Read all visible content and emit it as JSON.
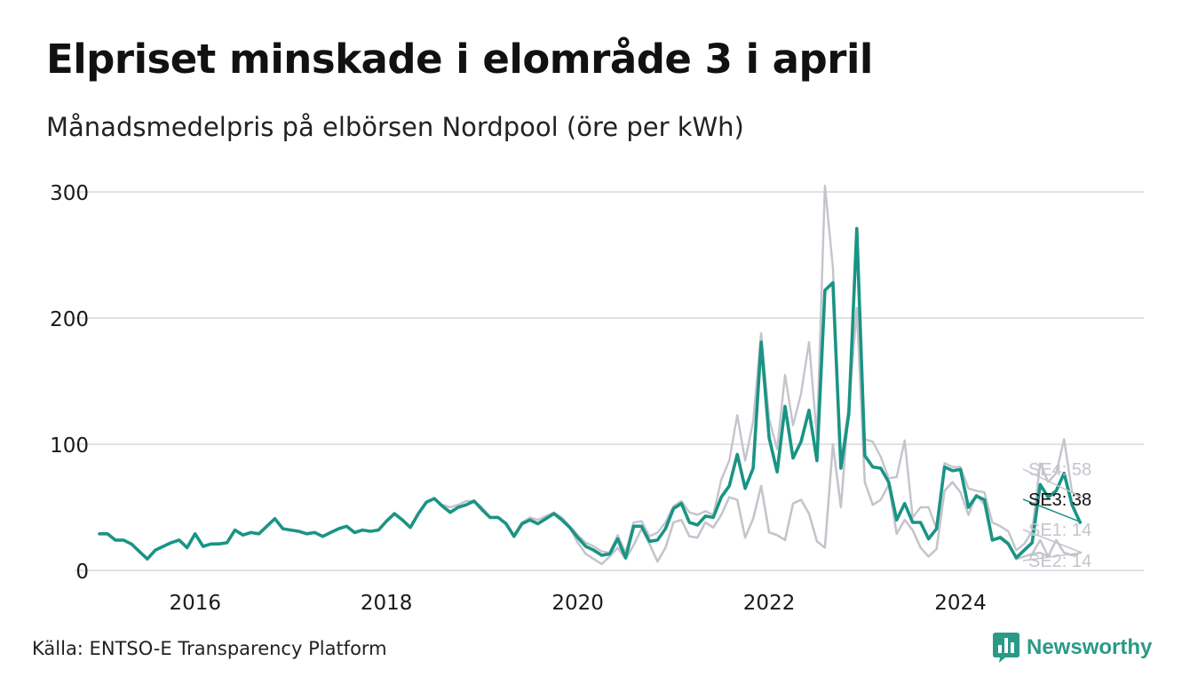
{
  "title": "Elpriset minskade i elområde 3 i april",
  "subtitle": "Månadsmedelpris på elbörsen Nordpool (öre per kWh)",
  "source": "Källa: ENTSO-E Transparency Platform",
  "brand": {
    "name": "Newsworthy",
    "color": "#2a9a86",
    "icon": "bar-chart-speech-bubble-icon"
  },
  "colors": {
    "highlight": "#1a9484",
    "other": "#c4c4cc",
    "grid": "#e2e2e6",
    "label_other": "#c4c4cc",
    "label_highlight": "#111111"
  },
  "chart_data": {
    "type": "line",
    "title": "Elpriset minskade i elområde 3 i april",
    "subtitle": "Månadsmedelpris på elbörsen Nordpool (öre per kWh)",
    "xlabel": "",
    "ylabel": "",
    "xlim": [
      "2015-01",
      "2025-12"
    ],
    "ylim": [
      0,
      300
    ],
    "y_ticks": [
      0,
      100,
      200,
      300
    ],
    "x_ticks": [
      "2016",
      "2018",
      "2020",
      "2022",
      "2024"
    ],
    "grid": true,
    "x_start": "2015-01",
    "x_step": "month",
    "highlight_series": "SE3",
    "series": [
      {
        "name": "SE3",
        "end_label": "SE3: 38",
        "values": [
          29,
          29,
          24,
          24,
          21,
          15,
          9,
          16,
          19,
          22,
          24,
          18,
          29,
          19,
          21,
          21,
          22,
          32,
          28,
          30,
          29,
          35,
          41,
          33,
          32,
          31,
          29,
          30,
          27,
          30,
          33,
          35,
          30,
          32,
          31,
          32,
          39,
          45,
          40,
          34,
          45,
          54,
          57,
          51,
          46,
          50,
          52,
          55,
          48,
          42,
          42,
          37,
          27,
          37,
          40,
          37,
          41,
          45,
          40,
          34,
          26,
          19,
          16,
          12,
          13,
          25,
          10,
          35,
          35,
          23,
          24,
          33,
          49,
          53,
          38,
          36,
          43,
          42,
          58,
          67,
          92,
          65,
          81,
          181,
          105,
          78,
          130,
          89,
          102,
          127,
          87,
          222,
          228,
          81,
          124,
          271,
          91,
          82,
          81,
          70,
          40,
          53,
          38,
          38,
          25,
          33,
          82,
          79,
          80,
          50,
          59,
          56,
          24,
          26,
          21,
          10,
          16,
          22,
          68,
          58,
          63,
          77,
          52,
          38
        ]
      },
      {
        "name": "SE4",
        "end_label": "SE4: 58",
        "values": [
          29,
          29,
          24,
          24,
          21,
          15,
          9,
          16,
          19,
          22,
          24,
          18,
          29,
          19,
          21,
          21,
          22,
          32,
          28,
          30,
          29,
          35,
          41,
          33,
          32,
          31,
          29,
          30,
          27,
          30,
          33,
          35,
          30,
          32,
          31,
          32,
          39,
          45,
          40,
          34,
          45,
          54,
          57,
          52,
          50,
          52,
          55,
          55,
          50,
          42,
          42,
          38,
          28,
          38,
          42,
          40,
          43,
          46,
          42,
          35,
          28,
          22,
          19,
          15,
          14,
          28,
          14,
          38,
          39,
          27,
          30,
          38,
          51,
          55,
          46,
          44,
          47,
          44,
          72,
          87,
          123,
          87,
          118,
          188,
          120,
          96,
          155,
          115,
          140,
          181,
          105,
          305,
          240,
          84,
          131,
          268,
          104,
          102,
          90,
          73,
          74,
          103,
          42,
          50,
          50,
          33,
          85,
          82,
          82,
          65,
          63,
          62,
          38,
          35,
          31,
          16,
          21,
          31,
          85,
          70,
          77,
          104,
          62,
          58
        ]
      },
      {
        "name": "SE1",
        "end_label": "SE1: 14",
        "values": [
          29,
          29,
          24,
          24,
          21,
          15,
          9,
          16,
          19,
          22,
          24,
          18,
          29,
          19,
          21,
          21,
          22,
          32,
          28,
          30,
          29,
          35,
          41,
          33,
          32,
          31,
          29,
          30,
          27,
          30,
          33,
          35,
          30,
          32,
          31,
          32,
          39,
          45,
          40,
          34,
          45,
          54,
          57,
          51,
          46,
          50,
          52,
          55,
          48,
          42,
          42,
          37,
          27,
          37,
          40,
          37,
          41,
          45,
          40,
          34,
          22,
          13,
          9,
          5,
          11,
          18,
          9,
          20,
          33,
          21,
          7,
          18,
          38,
          40,
          27,
          26,
          38,
          34,
          44,
          58,
          56,
          26,
          41,
          67,
          30,
          28,
          24,
          53,
          56,
          45,
          23,
          18,
          100,
          50,
          130,
          208,
          70,
          52,
          56,
          68,
          29,
          40,
          32,
          18,
          11,
          17,
          63,
          70,
          62,
          44,
          60,
          52,
          24,
          27,
          22,
          9,
          11,
          13,
          14,
          11,
          24,
          14,
          12,
          14
        ]
      },
      {
        "name": "SE2",
        "end_label": "SE2: 14",
        "values": [
          29,
          29,
          24,
          24,
          21,
          15,
          9,
          16,
          19,
          22,
          24,
          18,
          29,
          19,
          21,
          21,
          22,
          32,
          28,
          30,
          29,
          35,
          41,
          33,
          32,
          31,
          29,
          30,
          27,
          30,
          33,
          35,
          30,
          32,
          31,
          32,
          39,
          45,
          40,
          34,
          45,
          54,
          57,
          51,
          46,
          50,
          52,
          55,
          48,
          42,
          42,
          37,
          27,
          37,
          40,
          37,
          41,
          45,
          40,
          34,
          22,
          13,
          9,
          5,
          11,
          18,
          9,
          20,
          33,
          21,
          7,
          18,
          38,
          40,
          27,
          26,
          38,
          34,
          44,
          58,
          56,
          26,
          41,
          67,
          30,
          28,
          24,
          53,
          56,
          45,
          23,
          18,
          100,
          50,
          130,
          208,
          70,
          52,
          56,
          68,
          29,
          40,
          32,
          18,
          11,
          17,
          63,
          70,
          62,
          44,
          60,
          52,
          24,
          27,
          22,
          9,
          11,
          13,
          24,
          11,
          24,
          14,
          12,
          14
        ]
      }
    ]
  }
}
